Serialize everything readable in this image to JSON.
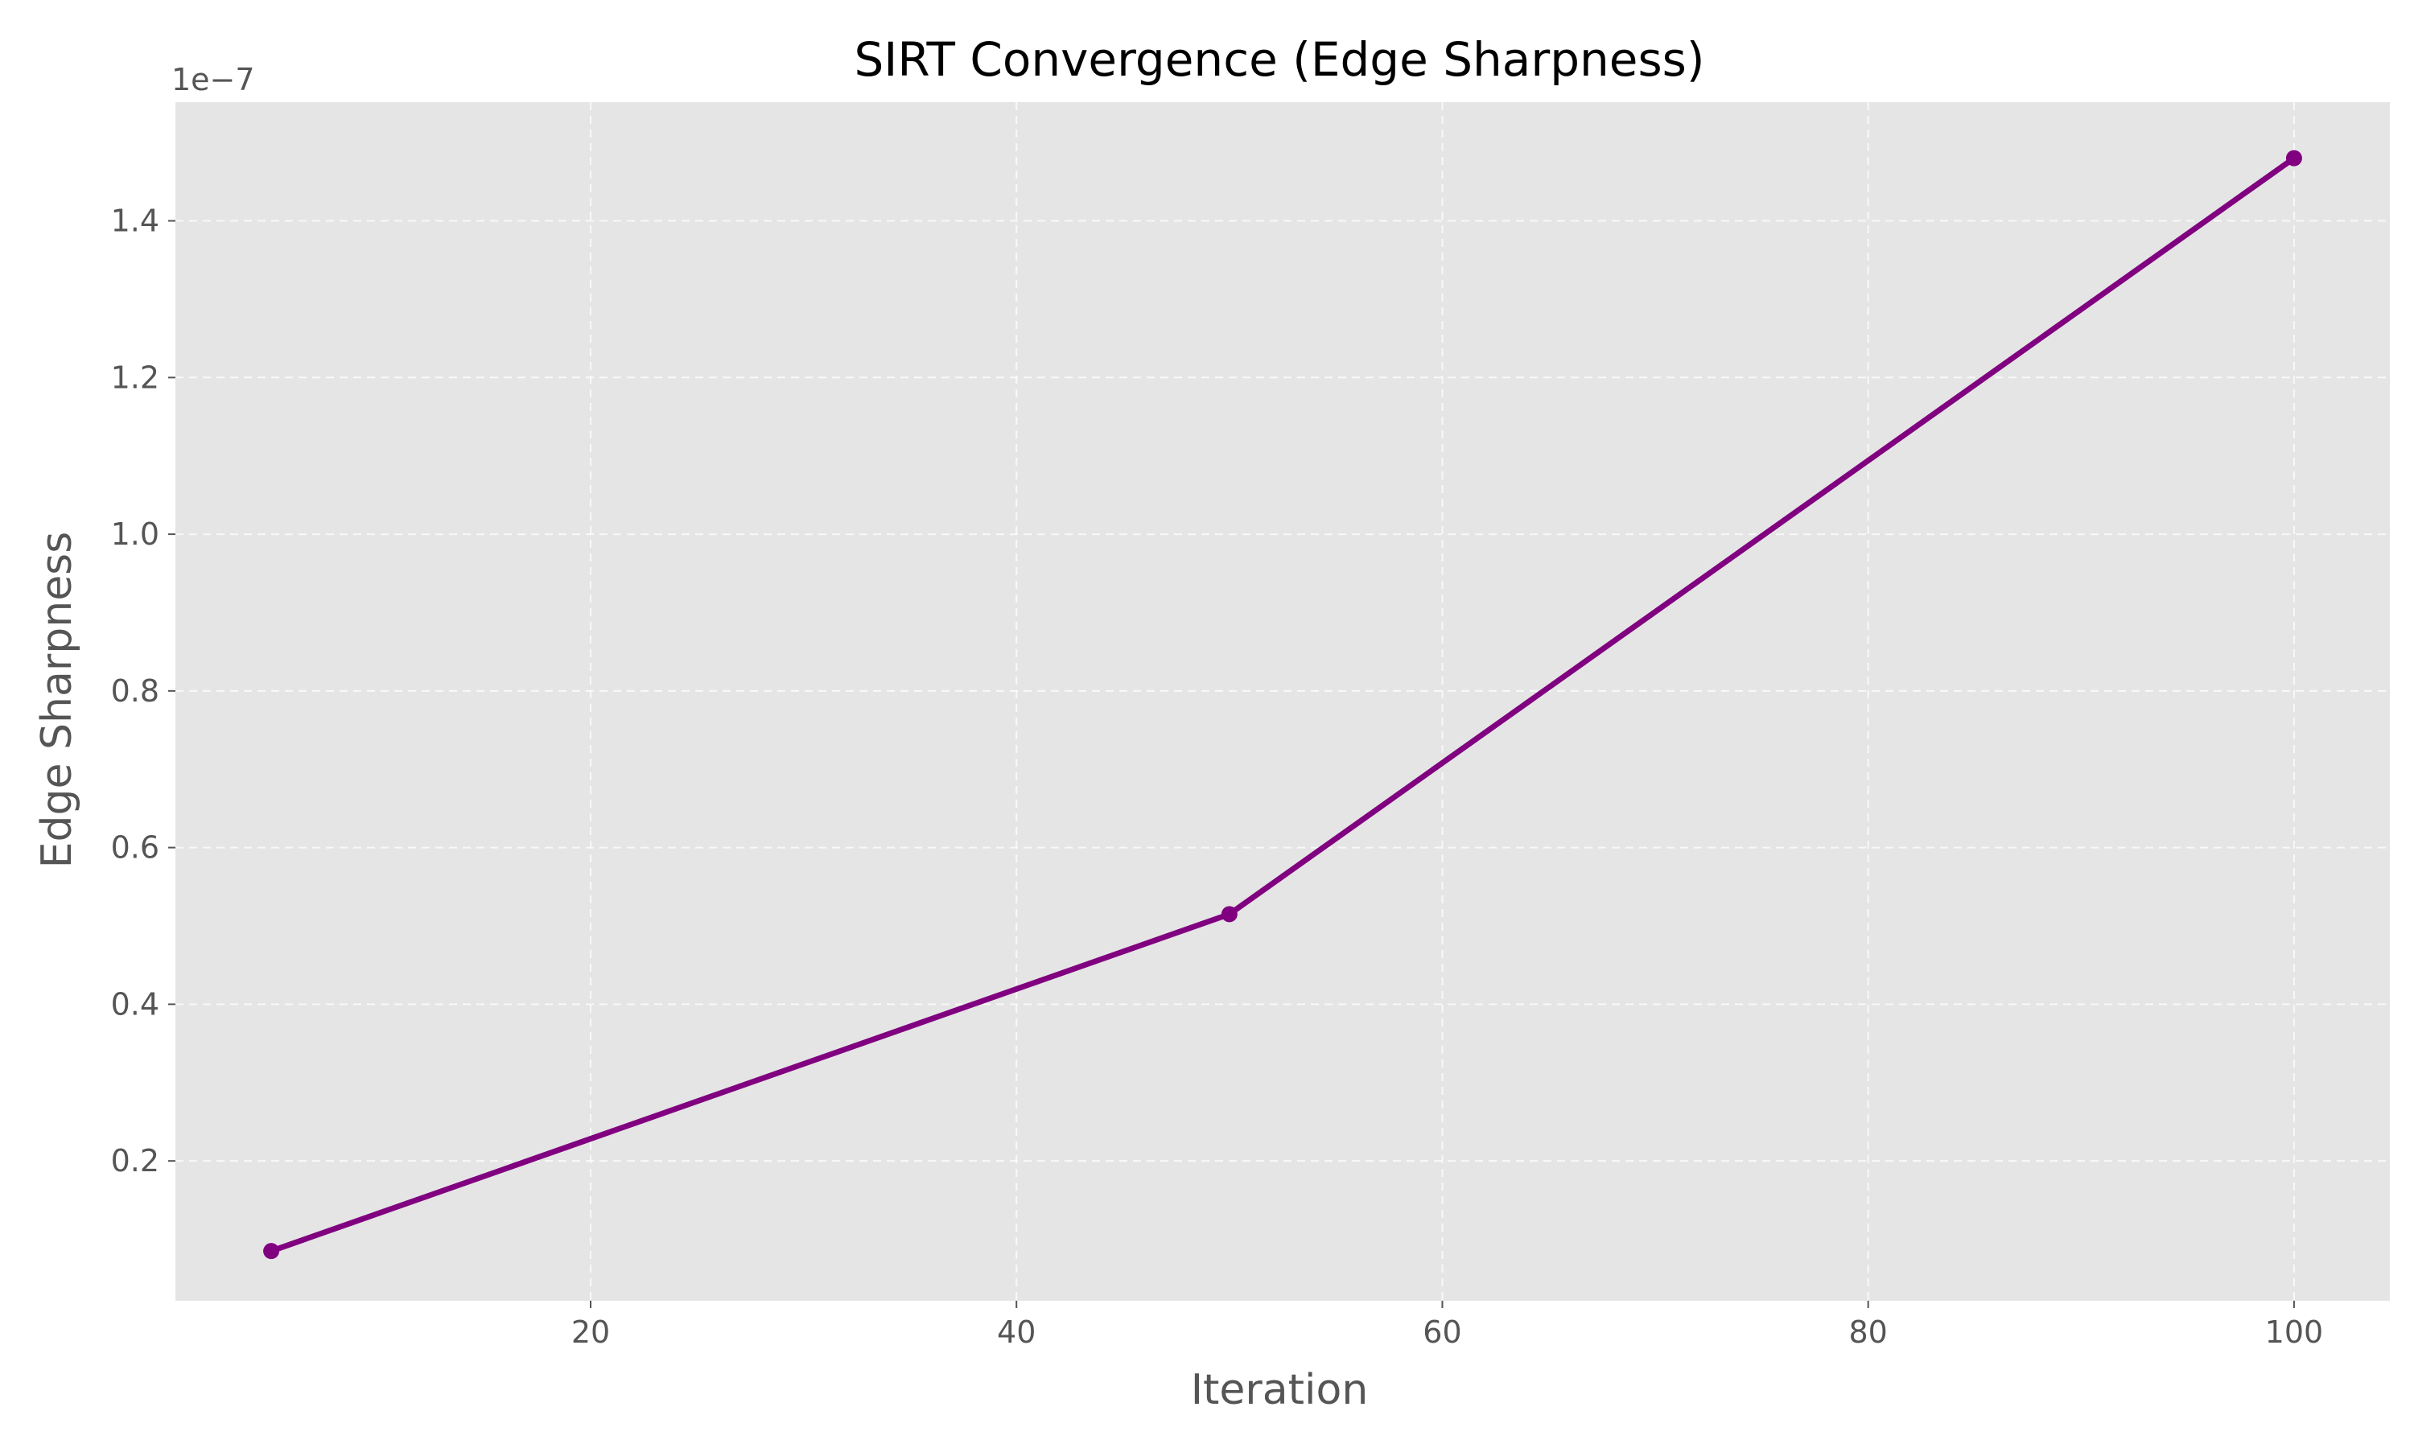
{
  "chart_data": {
    "type": "line",
    "title": "SIRT Convergence (Edge Sharpness)",
    "xlabel": "Iteration",
    "ylabel": "Edge Sharpness",
    "y_offset_label": "1e−7",
    "x_ticks": [
      20,
      40,
      60,
      80,
      100
    ],
    "y_ticks": [
      0.2,
      0.4,
      0.6,
      0.8,
      1.0,
      1.2,
      1.4
    ],
    "y_tick_labels": [
      "0.2",
      "0.4",
      "0.6",
      "0.8",
      "1.0",
      "1.2",
      "1.4"
    ],
    "y_scale": 1e-07,
    "xlim": [
      0.5,
      104.5
    ],
    "ylim": [
      0.0215,
      1.5515
    ],
    "grid": true,
    "series": [
      {
        "x": [
          5,
          50,
          100
        ],
        "y": [
          0.085,
          0.515,
          1.48
        ],
        "color": "#800080",
        "marker": "circle"
      }
    ],
    "background_color": "#e5e5e5"
  }
}
